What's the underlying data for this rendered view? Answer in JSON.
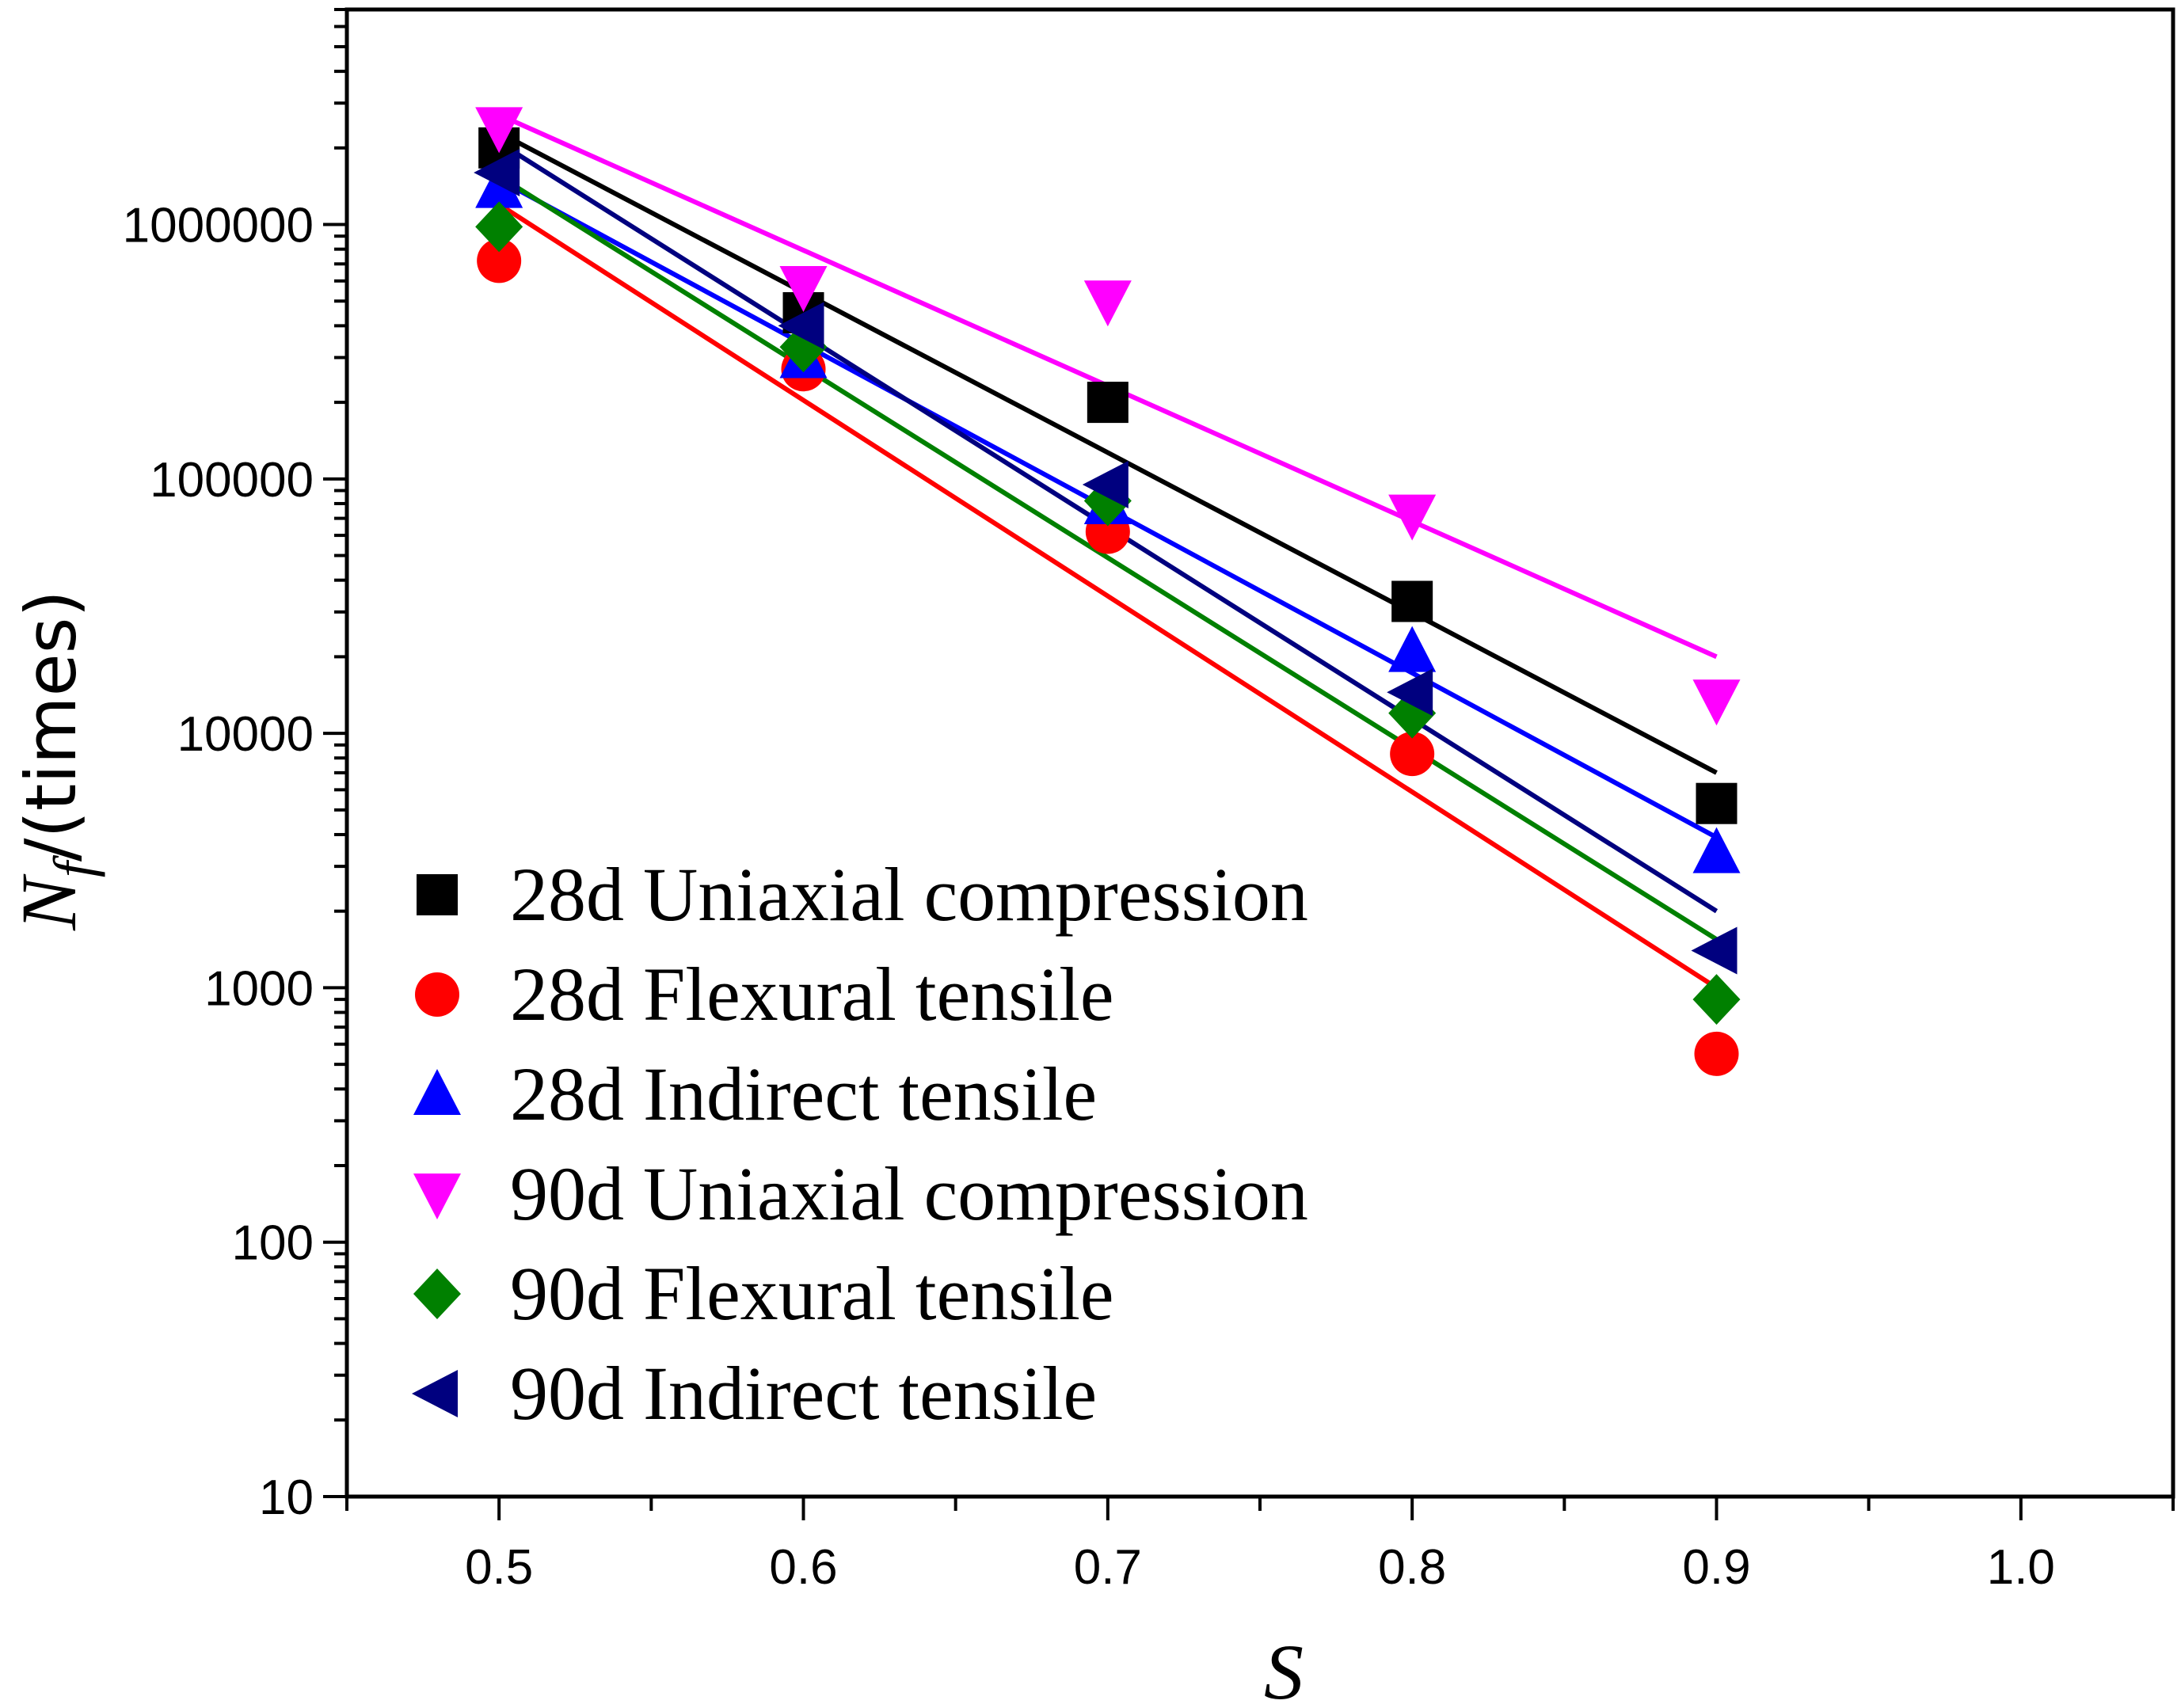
{
  "chart_data": {
    "type": "scatter",
    "title": "",
    "xlabel": "S",
    "ylabel_main": "N",
    "ylabel_sub": "f",
    "ylabel_rest": "/(times)",
    "x_scale": "linear",
    "y_scale": "log",
    "xlim": [
      0.45,
      1.05
    ],
    "ylim": [
      10,
      7000000
    ],
    "x_ticks": [
      0.5,
      0.6,
      0.7,
      0.8,
      0.9,
      1.0
    ],
    "x_tick_labels": [
      "0.5",
      "0.6",
      "0.7",
      "0.8",
      "0.9",
      "1.0"
    ],
    "y_ticks": [
      10,
      100,
      1000,
      10000,
      100000,
      1000000
    ],
    "y_tick_labels": [
      "10",
      "100",
      "1000",
      "10000",
      "100000",
      "1000000"
    ],
    "legend_position": "bottom-left",
    "series": [
      {
        "name": "28d Uniaxial compression",
        "marker": "square",
        "color": "#000000",
        "x": [
          0.5,
          0.6,
          0.7,
          0.8,
          0.9
        ],
        "y": [
          2000000,
          450000,
          200000,
          33000,
          5300
        ],
        "fit": {
          "x": [
            0.5,
            0.9
          ],
          "y": [
            2300000,
            7000
          ]
        }
      },
      {
        "name": "28d Flexural tensile",
        "marker": "circle",
        "color": "#ff0000",
        "x": [
          0.5,
          0.6,
          0.7,
          0.8,
          0.9
        ],
        "y": [
          720000,
          270000,
          62000,
          8300,
          550
        ],
        "fit": {
          "x": [
            0.5,
            0.9
          ],
          "y": [
            1200000,
            1000
          ]
        }
      },
      {
        "name": "28d Indirect tensile",
        "marker": "triangle-up",
        "color": "#0000ff",
        "x": [
          0.5,
          0.6,
          0.7,
          0.8,
          0.9
        ],
        "y": [
          1400000,
          300000,
          80000,
          21000,
          3400
        ],
        "fit": {
          "x": [
            0.5,
            0.9
          ],
          "y": [
            1500000,
            3900
          ]
        }
      },
      {
        "name": "90d Uniaxial compression",
        "marker": "triangle-down",
        "color": "#ff00ff",
        "x": [
          0.5,
          0.6,
          0.7,
          0.8,
          0.9
        ],
        "y": [
          2400000,
          570000,
          500000,
          72000,
          13500
        ],
        "fit": {
          "x": [
            0.5,
            0.9
          ],
          "y": [
            2700000,
            20000
          ]
        }
      },
      {
        "name": "90d Flexural tensile",
        "marker": "diamond",
        "color": "#008000",
        "x": [
          0.5,
          0.6,
          0.7,
          0.8,
          0.9
        ],
        "y": [
          980000,
          330000,
          82000,
          12000,
          900
        ],
        "fit": {
          "x": [
            0.5,
            0.9
          ],
          "y": [
            1550000,
            1550
          ]
        }
      },
      {
        "name": "90d Indirect tensile",
        "marker": "triangle-left",
        "color": "#00007f",
        "x": [
          0.5,
          0.6,
          0.7,
          0.8,
          0.9
        ],
        "y": [
          1600000,
          400000,
          95000,
          14500,
          1400
        ],
        "fit": {
          "x": [
            0.5,
            0.9
          ],
          "y": [
            2100000,
            2000
          ]
        }
      }
    ]
  }
}
